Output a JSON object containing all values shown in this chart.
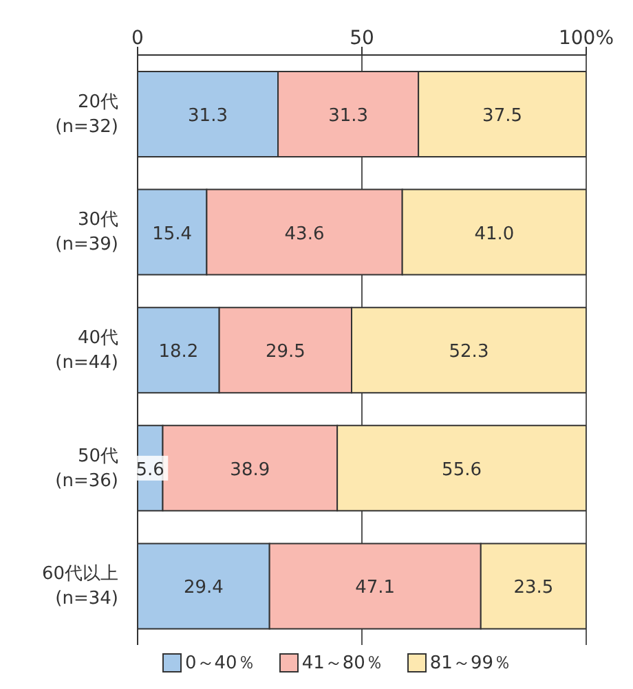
{
  "chart_data": {
    "type": "bar",
    "orientation": "horizontal",
    "stacked": true,
    "categories": [
      "20代\n(n=32)",
      "30代\n(n=39)",
      "40代\n(n=44)",
      "50代\n(n=36)",
      "60代以上\n(n=34)"
    ],
    "series": [
      {
        "name": "0～40％",
        "color": "#a6c9ea",
        "values": [
          31.3,
          15.4,
          18.2,
          5.6,
          29.4
        ],
        "value_labels": [
          "31.3",
          "15.4",
          "18.2",
          "5.6",
          "29.4"
        ]
      },
      {
        "name": "41～80％",
        "color": "#f9bab1",
        "values": [
          31.3,
          43.6,
          29.5,
          38.9,
          47.1
        ],
        "value_labels": [
          "31.3",
          "43.6",
          "29.5",
          "38.9",
          "47.1"
        ]
      },
      {
        "name": "81～99％",
        "color": "#fde8b0",
        "values": [
          37.5,
          41.0,
          52.3,
          55.6,
          23.5
        ],
        "value_labels": [
          "37.5",
          "41.0",
          "52.3",
          "55.6",
          "23.5"
        ]
      }
    ],
    "xlim": [
      0,
      100
    ],
    "xticks": [
      0,
      50,
      {
        "value": 100,
        "label": "100%"
      }
    ],
    "grid": "x",
    "legend": "bottom"
  }
}
